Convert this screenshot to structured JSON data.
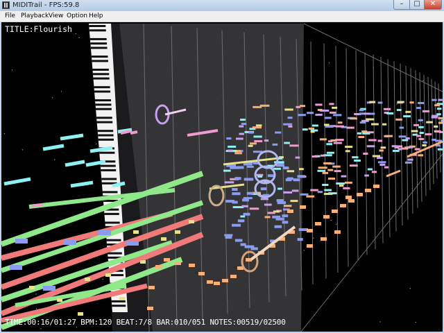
{
  "window": {
    "title": "MIDITrail - FPS:59.8",
    "min_glyph": "–",
    "max_glyph": "□",
    "close_glyph": "✕"
  },
  "menu": {
    "items": [
      "File",
      "Playback",
      "View",
      "Option",
      "Help"
    ]
  },
  "hud": {
    "title": "TITLE:Flourish",
    "status": "TIME:00:16/01:27 BPM:120 BEAT:7/8 BAR:010/051 NOTES:00519/02500"
  },
  "colors": {
    "green": "#8fe88a",
    "red": "#f07a7a",
    "cyan": "#8ef0f0",
    "blue": "#8a9cf0",
    "orange": "#f5b07a",
    "pink": "#f09ad0",
    "yellow": "#e8e08a",
    "violet": "#c8a0f0"
  },
  "icons": [
    "app-icon",
    "minimize-icon",
    "maximize-icon",
    "close-icon"
  ]
}
